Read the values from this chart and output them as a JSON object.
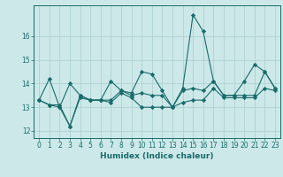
{
  "title": "",
  "xlabel": "Humidex (Indice chaleur)",
  "ylabel": "",
  "bg_color": "#cce8e8",
  "grid_color": "#aacece",
  "line_color": "#1a6b6b",
  "xlim": [
    -0.5,
    23.5
  ],
  "ylim": [
    11.7,
    17.3
  ],
  "yticks": [
    12,
    13,
    14,
    15,
    16
  ],
  "ytick_labels": [
    "12",
    "13",
    "14",
    "15",
    "16"
  ],
  "xticks": [
    0,
    1,
    2,
    3,
    4,
    5,
    6,
    7,
    8,
    9,
    10,
    11,
    12,
    13,
    14,
    15,
    16,
    17,
    18,
    19,
    20,
    21,
    22,
    23
  ],
  "xtick_labels": [
    "0",
    "1",
    "2",
    "3",
    "4",
    "5",
    "6",
    "7",
    "8",
    "9",
    "10",
    "11",
    "12",
    "13",
    "14",
    "15",
    "16",
    "17",
    "18",
    "19",
    "20",
    "21",
    "22",
    "23"
  ],
  "series": [
    [
      13.3,
      14.2,
      13.0,
      14.0,
      13.5,
      13.3,
      13.3,
      14.1,
      13.7,
      13.6,
      14.5,
      14.4,
      13.7,
      13.0,
      13.8,
      16.9,
      16.2,
      14.1,
      13.5,
      13.5,
      14.1,
      14.8,
      14.5,
      13.8
    ],
    [
      13.3,
      13.1,
      13.1,
      12.2,
      13.5,
      13.3,
      13.3,
      13.3,
      13.7,
      13.5,
      13.6,
      13.5,
      13.5,
      13.0,
      13.7,
      13.8,
      13.7,
      14.1,
      13.5,
      13.5,
      13.5,
      13.5,
      14.5,
      13.8
    ],
    [
      13.3,
      13.1,
      13.0,
      12.2,
      13.4,
      13.3,
      13.3,
      13.2,
      13.6,
      13.4,
      13.0,
      13.0,
      13.0,
      13.0,
      13.2,
      13.3,
      13.3,
      13.8,
      13.4,
      13.4,
      13.4,
      13.4,
      13.8,
      13.7
    ]
  ],
  "marker": "D",
  "marker_size": 2.2,
  "line_width": 0.8,
  "tick_fontsize": 5.5,
  "xlabel_fontsize": 6.5
}
